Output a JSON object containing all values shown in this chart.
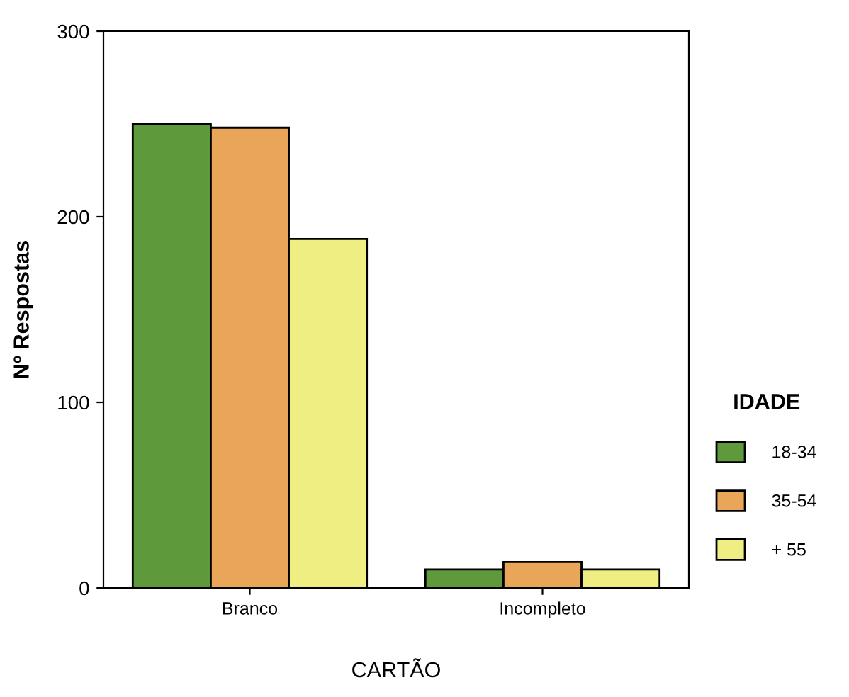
{
  "chart_data": {
    "type": "bar",
    "xlabel": "CARTÃO",
    "ylabel": "Nº Respostas",
    "legend_title": "IDADE",
    "categories": [
      "Branco",
      "Incompleto"
    ],
    "series": [
      {
        "name": "18-34",
        "color": "#5e9a3c",
        "values": [
          250,
          10
        ]
      },
      {
        "name": "35-54",
        "color": "#e9a658",
        "values": [
          248,
          14
        ]
      },
      {
        "name": "+ 55",
        "color": "#eeee82",
        "values": [
          188,
          10
        ]
      }
    ],
    "ylim": [
      0,
      300
    ],
    "yticks": [
      0,
      100,
      200,
      300
    ],
    "grid": false,
    "legend": "right"
  }
}
